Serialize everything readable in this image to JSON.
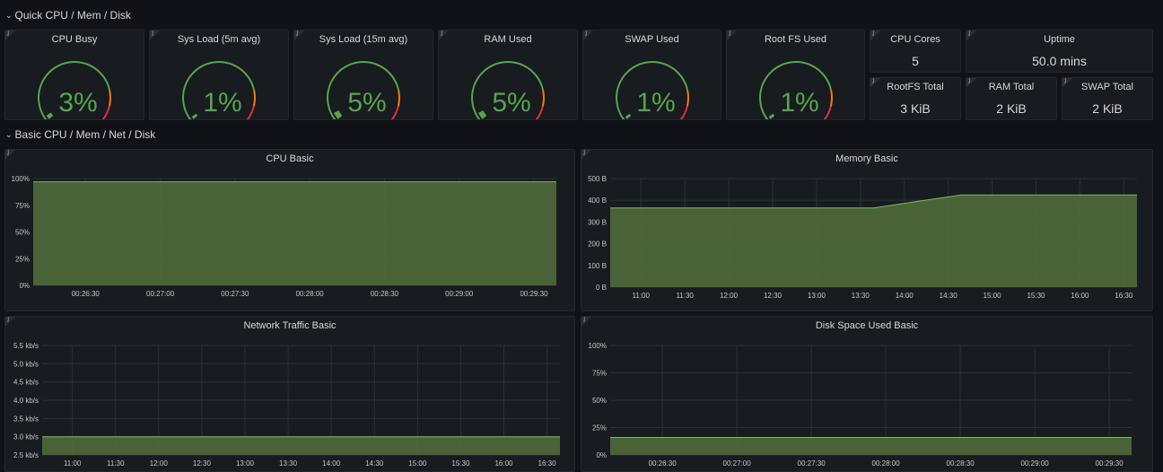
{
  "rows": [
    {
      "label": "Quick CPU / Mem / Disk"
    },
    {
      "label": "Basic CPU / Mem / Net / Disk"
    }
  ],
  "colors": {
    "green": "#56a64b",
    "red": "#e02f44",
    "orange": "#ff780a",
    "fill": "#4f6b3a",
    "grid": "#2c3037"
  },
  "gauges": [
    {
      "title": "CPU Busy",
      "value": 3,
      "display": "3%"
    },
    {
      "title": "Sys Load (5m avg)",
      "value": 1,
      "display": "1%"
    },
    {
      "title": "Sys Load (15m avg)",
      "value": 5,
      "display": "5%"
    },
    {
      "title": "RAM Used",
      "value": 5,
      "display": "5%"
    },
    {
      "title": "SWAP Used",
      "value": 1,
      "display": "1%"
    },
    {
      "title": "Root FS Used",
      "value": 1,
      "display": "1%"
    }
  ],
  "stats": [
    {
      "title": "CPU Cores",
      "value": "5"
    },
    {
      "title": "Uptime",
      "value": "50.0 mins"
    },
    {
      "title": "RootFS Total",
      "value": "3 KiB"
    },
    {
      "title": "RAM Total",
      "value": "2 KiB"
    },
    {
      "title": "SWAP Total",
      "value": "2 KiB"
    }
  ],
  "chart_data": [
    {
      "type": "area",
      "title": "CPU Basic",
      "y_ticks": [
        "100%",
        "75%",
        "50%",
        "25%",
        "0%"
      ],
      "ylim": [
        0,
        100
      ],
      "x_ticks": [
        "00:26:30",
        "00:27:00",
        "00:27:30",
        "00:28:00",
        "00:28:30",
        "00:29:00",
        "00:29:30"
      ],
      "x": [
        0,
        1
      ],
      "values": [
        97,
        97
      ]
    },
    {
      "type": "area",
      "title": "Memory Basic",
      "y_ticks": [
        "500 B",
        "400 B",
        "300 B",
        "200 B",
        "100 B",
        "0 B"
      ],
      "ylim": [
        0,
        500
      ],
      "x_ticks": [
        "11:00",
        "11:30",
        "12:00",
        "12:30",
        "13:00",
        "13:30",
        "14:00",
        "14:30",
        "15:00",
        "15:30",
        "16:00",
        "16:30"
      ],
      "x": [
        0,
        0.5,
        1,
        1.5,
        2,
        2.5,
        3,
        3.5,
        4,
        4.5,
        5,
        5.5,
        6
      ],
      "values": [
        365,
        365,
        365,
        365,
        365,
        365,
        365,
        395,
        425,
        425,
        425,
        425,
        425
      ]
    },
    {
      "type": "area",
      "title": "Network Traffic Basic",
      "y_ticks": [
        "5.5 kb/s",
        "5.0 kb/s",
        "4.5 kb/s",
        "4.0 kb/s",
        "3.5 kb/s",
        "3.0 kb/s",
        "2.5 kb/s"
      ],
      "ylim": [
        2.5,
        5.5
      ],
      "x_ticks": [
        "11:00",
        "11:30",
        "12:00",
        "12:30",
        "13:00",
        "13:30",
        "14:00",
        "14:30",
        "15:00",
        "15:30",
        "16:00",
        "16:30"
      ],
      "x": [
        0,
        1
      ],
      "values": [
        3.0,
        3.0
      ]
    },
    {
      "type": "area",
      "title": "Disk Space Used Basic",
      "y_ticks": [
        "100%",
        "75%",
        "50%",
        "25%",
        "0%"
      ],
      "ylim": [
        0,
        100
      ],
      "x_ticks": [
        "00:26:30",
        "00:27:00",
        "00:27:30",
        "00:28:00",
        "00:28:30",
        "00:29:00",
        "00:29:30"
      ],
      "x": [
        0,
        1
      ],
      "values": [
        16,
        16
      ]
    }
  ]
}
